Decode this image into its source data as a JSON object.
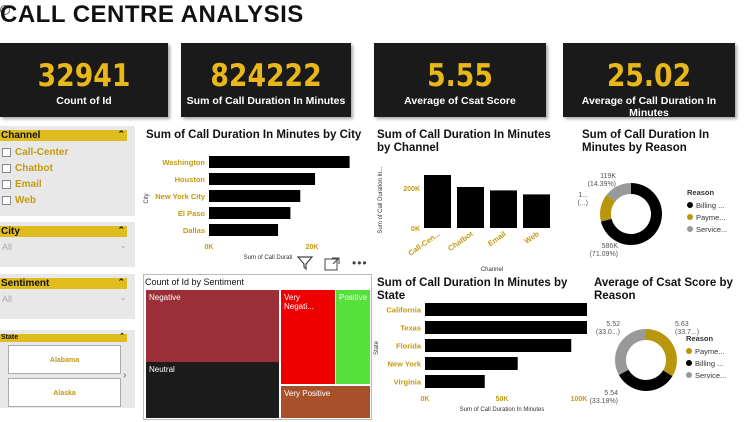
{
  "title": "CALL CENTRE ANALYSIS",
  "kpis": [
    {
      "value": "32941",
      "label": "Count of Id"
    },
    {
      "value": "824222",
      "label": "Sum of Call Duration In Minutes"
    },
    {
      "value": "5.55",
      "label": "Average of Csat Score"
    },
    {
      "value": "25.02",
      "label": "Average of Call Duration In Minutes"
    }
  ],
  "slicers": {
    "channel": {
      "title": "Channel",
      "options": [
        "Call-Center",
        "Chatbot",
        "Email",
        "Web"
      ]
    },
    "city": {
      "title": "City",
      "value": "All"
    },
    "sentiment": {
      "title": "Sentiment",
      "value": "All"
    },
    "state": {
      "title": "State",
      "options": [
        "Alabama",
        "Alaska"
      ]
    }
  },
  "colors": {
    "accent": "#e0bc1e",
    "kpi_bg": "#1a1a1a",
    "kpi_value": "#e8b81a"
  },
  "charts": {
    "city": {
      "type": "bar",
      "title": "Sum of Call Duration In Minutes by City",
      "categories": [
        "Washington",
        "Houston",
        "New York City",
        "El Paso",
        "Dallas"
      ],
      "values": [
        28500,
        21500,
        18500,
        16500,
        14000
      ],
      "xlim": [
        0,
        30000
      ],
      "ticks": [
        "0K",
        "20K"
      ],
      "ylabel": "City",
      "xlabel": "Sum of Call Durati"
    },
    "channel": {
      "type": "bar",
      "title": "Sum of Call Duration In Minutes by Channel",
      "categories": [
        "Call-Cen...",
        "Chatbot",
        "Email",
        "Web"
      ],
      "values": [
        265000,
        205000,
        188000,
        168000
      ],
      "ylim": [
        0,
        300000
      ],
      "ticks": [
        "0K",
        "200K"
      ],
      "ylabel": "Sum of Call Duration In...",
      "xlabel": "Channel"
    },
    "reason": {
      "type": "pie",
      "title": "Sum of Call Duration In Minutes by Reason",
      "legend_title": "Reason",
      "slices": [
        {
          "name": "Billing ...",
          "value": 586,
          "label": "586K",
          "pct": "(71.09%)",
          "color": "#000000"
        },
        {
          "name": "Payme...",
          "value": 119,
          "label": "1...",
          "pct": "(...)",
          "color": "#b8960e"
        },
        {
          "name": "Service...",
          "value": 119,
          "label": "119K",
          "pct": "(14.39%)",
          "color": "#999999"
        }
      ]
    },
    "sentiment": {
      "type": "treemap",
      "title": "Count of Id by Sentiment",
      "items": [
        {
          "name": "Negative"
        },
        {
          "name": "Neutral"
        },
        {
          "name": "Very Negati..."
        },
        {
          "name": "Positive"
        },
        {
          "name": "Very Positive"
        }
      ]
    },
    "state": {
      "type": "bar",
      "title": "Sum of Call Duration In Minutes by State",
      "categories": [
        "California",
        "Texas",
        "Florida",
        "New York",
        "Virginia"
      ],
      "values": [
        93000,
        91000,
        71000,
        45000,
        29000
      ],
      "xlim": [
        0,
        100000
      ],
      "ticks": [
        "0K",
        "50K",
        "100K"
      ],
      "ylabel": "State",
      "xlabel": "Sum of Call Duration In Minutes"
    },
    "csat": {
      "type": "pie",
      "title": "Average of Csat Score by Reason",
      "legend_title": "Reason",
      "slices": [
        {
          "name": "Payme...",
          "value": 5.63,
          "label": "5.63",
          "pct": "(33.7...)",
          "color": "#b8960e"
        },
        {
          "name": "Billing ...",
          "value": 5.54,
          "label": "5.54",
          "pct": "(33.18%)",
          "color": "#000000"
        },
        {
          "name": "Service...",
          "value": 5.52,
          "label": "5.52",
          "pct": "(33.0...)",
          "color": "#999999"
        }
      ]
    }
  }
}
